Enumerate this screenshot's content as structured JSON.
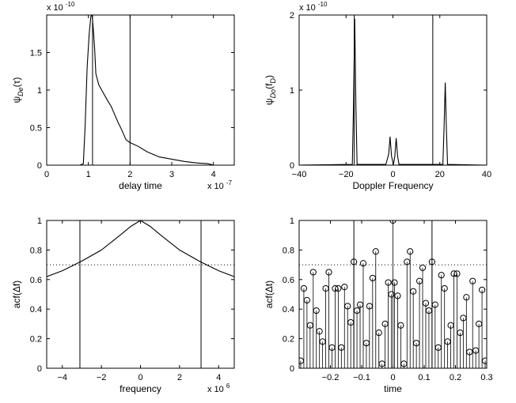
{
  "chart_data": [
    {
      "id": "delay",
      "type": "line",
      "xlabel": "delay time",
      "ylabel_main": "ψ",
      "ylabel_sub": "De",
      "ylabel_arg": "(τ)",
      "xlim": [
        0,
        4.5
      ],
      "ylim": [
        0,
        2
      ],
      "xticks": [
        "0",
        "1",
        "2",
        "3",
        "4"
      ],
      "yticks": [
        "0",
        "0.5",
        "1",
        "1.5"
      ],
      "x_exponent": "x 10",
      "x_exponent_power": "-7",
      "y_exponent": "x 10",
      "y_exponent_power": "-10",
      "vlines": [
        1.1,
        2.0
      ],
      "series": [
        {
          "x": [
            0.0,
            0.8,
            0.88,
            0.92,
            0.97,
            1.02,
            1.06,
            1.09,
            1.12,
            1.15,
            1.18,
            1.25,
            1.35,
            1.45,
            1.55,
            1.65,
            1.72,
            1.8,
            1.9,
            2.0,
            2.2,
            2.4,
            2.7,
            3.0,
            3.3,
            3.6,
            3.85,
            3.95,
            4.0,
            4.5
          ],
          "y": [
            0,
            0,
            0.02,
            0.5,
            1.3,
            1.75,
            1.98,
            2.0,
            1.8,
            1.55,
            1.22,
            1.07,
            0.97,
            0.87,
            0.78,
            0.65,
            0.56,
            0.47,
            0.34,
            0.3,
            0.25,
            0.18,
            0.11,
            0.08,
            0.05,
            0.03,
            0.02,
            0.01,
            0,
            0
          ]
        }
      ]
    },
    {
      "id": "doppler",
      "type": "line",
      "xlabel": "Doppler Frequency",
      "ylabel_main": "ψ",
      "ylabel_sub": "Do",
      "ylabel_arg": "(f",
      "ylabel_arg_sub": "D",
      "ylabel_close": ")",
      "xlim": [
        -40,
        40
      ],
      "ylim": [
        0,
        2
      ],
      "xticks": [
        "−40",
        "−20",
        "0",
        "20",
        "40"
      ],
      "yticks": [
        "0",
        "1",
        "2"
      ],
      "y_exponent": "x 10",
      "y_exponent_power": "-10",
      "vlines": [
        -16.5,
        17
      ],
      "series": [
        {
          "x": [
            -40,
            -17.3,
            -16.8,
            -16.3,
            -15.8,
            -15.3,
            -3,
            -1.8,
            -1.2,
            -0.6,
            0.2,
            0.8,
            1.4,
            2.0,
            2.6,
            21.3,
            21.8,
            22.3,
            22.8,
            23.3,
            40
          ],
          "y": [
            0,
            0.01,
            0.8,
            1.95,
            0.8,
            0.01,
            0.01,
            0.15,
            0.38,
            0.12,
            0.01,
            0.12,
            0.36,
            0.12,
            0.01,
            0.01,
            0.5,
            1.1,
            0.5,
            0.01,
            0
          ]
        }
      ]
    },
    {
      "id": "acf_freq",
      "type": "line",
      "xlabel": "frequency",
      "ylabel": "acf(Δf)",
      "xlim": [
        -4.8,
        4.8
      ],
      "ylim": [
        0,
        1
      ],
      "xticks": [
        "−4",
        "−2",
        "0",
        "2",
        "4"
      ],
      "yticks": [
        "0",
        "0.2",
        "0.4",
        "0.6",
        "0.8",
        "1"
      ],
      "x_exponent": "x 10",
      "x_exponent_power": "6",
      "vlines": [
        -3.1,
        3.1
      ],
      "hline": 0.7,
      "series": [
        {
          "x": [
            -4.8,
            -4,
            -3,
            -2,
            -1,
            -0.5,
            0,
            0.5,
            1,
            2,
            3,
            4,
            4.8
          ],
          "y": [
            0.62,
            0.66,
            0.725,
            0.8,
            0.905,
            0.96,
            1.0,
            0.96,
            0.905,
            0.8,
            0.725,
            0.66,
            0.62
          ]
        }
      ]
    },
    {
      "id": "acf_time",
      "type": "scatter",
      "xlabel": "time",
      "ylabel": "acf(Δt)",
      "xlim": [
        -0.3,
        0.3
      ],
      "ylim": [
        0,
        1
      ],
      "xticks": [
        "−0.2",
        "−0.1",
        "0",
        "0.1",
        "0.2",
        "0.3"
      ],
      "yticks": [
        "0",
        "0.2",
        "0.4",
        "0.6",
        "0.8",
        "1"
      ],
      "vlines": [
        -0.125,
        0.125
      ],
      "hline": 0.7,
      "series": [
        {
          "x": [
            -0.295,
            -0.285,
            -0.275,
            -0.265,
            -0.255,
            -0.245,
            -0.235,
            -0.225,
            -0.215,
            -0.205,
            -0.195,
            -0.185,
            -0.175,
            -0.165,
            -0.155,
            -0.145,
            -0.135,
            -0.125,
            -0.115,
            -0.105,
            -0.095,
            -0.085,
            -0.075,
            -0.065,
            -0.055,
            -0.045,
            -0.035,
            -0.025,
            -0.015,
            -0.005,
            0.0,
            0.005,
            0.015,
            0.025,
            0.035,
            0.045,
            0.055,
            0.065,
            0.075,
            0.085,
            0.095,
            0.105,
            0.115,
            0.125,
            0.135,
            0.145,
            0.155,
            0.165,
            0.175,
            0.185,
            0.195,
            0.205,
            0.215,
            0.225,
            0.235,
            0.245,
            0.255,
            0.265,
            0.275,
            0.285,
            0.295
          ],
          "y": [
            0.05,
            0.54,
            0.46,
            0.29,
            0.65,
            0.39,
            0.25,
            0.18,
            0.54,
            0.65,
            0.14,
            0.54,
            0.54,
            0.14,
            0.55,
            0.42,
            0.31,
            0.72,
            0.39,
            0.43,
            0.71,
            0.17,
            0.42,
            0.61,
            0.79,
            0.24,
            0.03,
            0.3,
            0.58,
            0.5,
            1.0,
            0.58,
            0.49,
            0.29,
            0.03,
            0.72,
            0.79,
            0.52,
            0.17,
            0.59,
            0.68,
            0.44,
            0.39,
            0.72,
            0.43,
            0.14,
            0.63,
            0.54,
            0.18,
            0.29,
            0.64,
            0.64,
            0.24,
            0.34,
            0.48,
            0.11,
            0.59,
            0.12,
            0.3,
            0.53,
            0.05
          ]
        }
      ]
    }
  ]
}
